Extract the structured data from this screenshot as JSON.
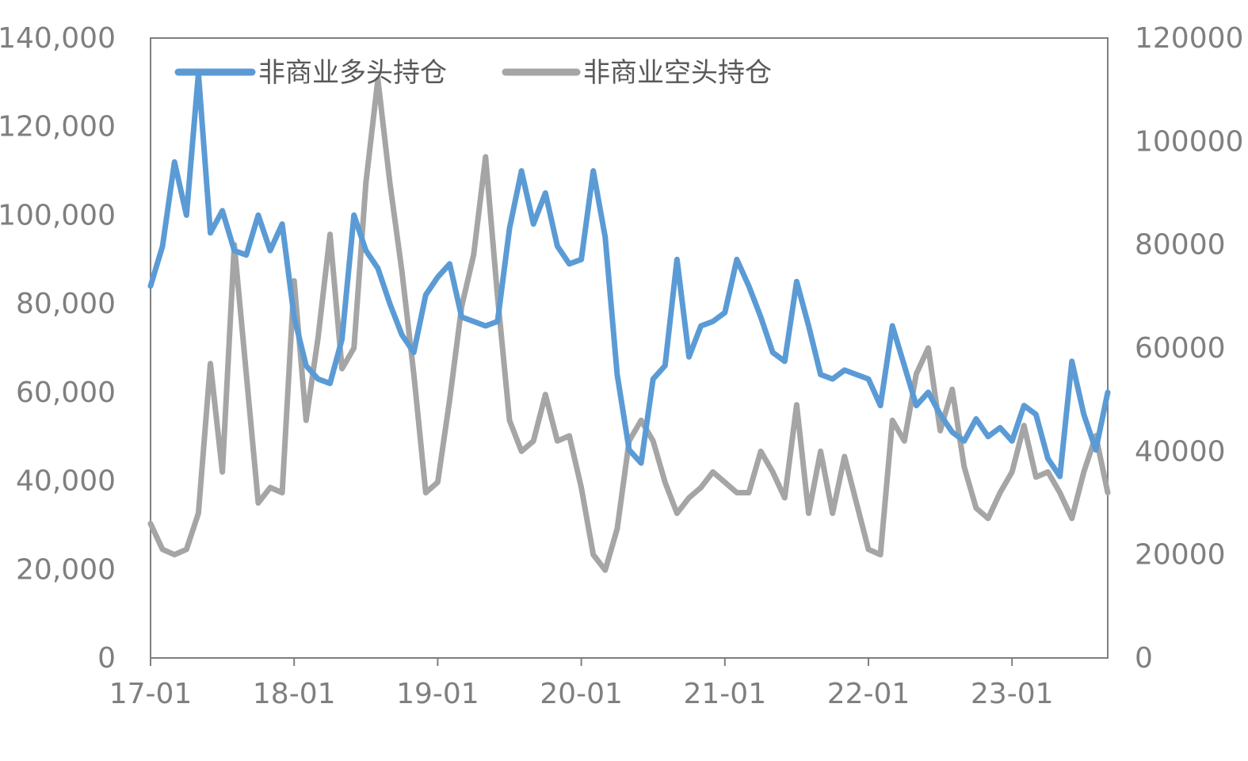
{
  "chart_data": {
    "type": "line",
    "title": "",
    "xlabel": "",
    "ylabel": "",
    "x_ticks": [
      "17-01",
      "18-01",
      "19-01",
      "20-01",
      "21-01",
      "22-01",
      "23-01"
    ],
    "x_range": [
      "2017-01",
      "2023-09"
    ],
    "y_left": {
      "ylim": [
        0,
        140000
      ],
      "ticks": [
        "0",
        "20,000",
        "40,000",
        "60,000",
        "80,000",
        "100,000",
        "120,000",
        "140,000"
      ]
    },
    "y_right": {
      "ylim": [
        0,
        120000
      ],
      "ticks": [
        "0",
        "20000",
        "40000",
        "60000",
        "80000",
        "100000",
        "120000"
      ]
    },
    "grid": false,
    "legend_position": "top-left inside",
    "series": [
      {
        "name": "非商业多头持仓",
        "axis": "left",
        "color": "#5b9bd5",
        "x": [
          "2017-01",
          "2017-02",
          "2017-03",
          "2017-04",
          "2017-05",
          "2017-06",
          "2017-07",
          "2017-08",
          "2017-09",
          "2017-10",
          "2017-11",
          "2017-12",
          "2018-01",
          "2018-02",
          "2018-03",
          "2018-04",
          "2018-05",
          "2018-06",
          "2018-07",
          "2018-08",
          "2018-09",
          "2018-10",
          "2018-11",
          "2018-12",
          "2019-01",
          "2019-02",
          "2019-03",
          "2019-04",
          "2019-05",
          "2019-06",
          "2019-07",
          "2019-08",
          "2019-09",
          "2019-10",
          "2019-11",
          "2019-12",
          "2020-01",
          "2020-02",
          "2020-03",
          "2020-04",
          "2020-05",
          "2020-06",
          "2020-07",
          "2020-08",
          "2020-09",
          "2020-10",
          "2020-11",
          "2020-12",
          "2021-01",
          "2021-02",
          "2021-03",
          "2021-04",
          "2021-05",
          "2021-06",
          "2021-07",
          "2021-08",
          "2021-09",
          "2021-10",
          "2021-11",
          "2021-12",
          "2022-01",
          "2022-02",
          "2022-03",
          "2022-04",
          "2022-05",
          "2022-06",
          "2022-07",
          "2022-08",
          "2022-09",
          "2022-10",
          "2022-11",
          "2022-12",
          "2023-01",
          "2023-02",
          "2023-03",
          "2023-04",
          "2023-05",
          "2023-06",
          "2023-07",
          "2023-08",
          "2023-09"
        ],
        "values": [
          84000,
          93000,
          112000,
          100000,
          132000,
          96000,
          101000,
          92000,
          91000,
          100000,
          92000,
          98000,
          77000,
          66000,
          63000,
          62000,
          72000,
          100000,
          92000,
          88000,
          80000,
          73000,
          69000,
          82000,
          86000,
          89000,
          77000,
          76000,
          75000,
          76000,
          97000,
          110000,
          98000,
          105000,
          93000,
          89000,
          90000,
          110000,
          95000,
          64000,
          47000,
          44000,
          63000,
          66000,
          90000,
          68000,
          75000,
          76000,
          78000,
          90000,
          84000,
          77000,
          69000,
          67000,
          85000,
          75000,
          64000,
          63000,
          65000,
          64000,
          63000,
          57000,
          75000,
          66000,
          57000,
          60000,
          55000,
          51000,
          49000,
          54000,
          50000,
          52000,
          49000,
          57000,
          55000,
          45000,
          41000,
          67000,
          55000,
          47000,
          60000
        ]
      },
      {
        "name": "非商业空头持仓",
        "axis": "right",
        "color": "#a5a5a5",
        "x": [
          "2017-01",
          "2017-02",
          "2017-03",
          "2017-04",
          "2017-05",
          "2017-06",
          "2017-07",
          "2017-08",
          "2017-09",
          "2017-10",
          "2017-11",
          "2017-12",
          "2018-01",
          "2018-02",
          "2018-03",
          "2018-04",
          "2018-05",
          "2018-06",
          "2018-07",
          "2018-08",
          "2018-09",
          "2018-10",
          "2018-11",
          "2018-12",
          "2019-01",
          "2019-02",
          "2019-03",
          "2019-04",
          "2019-05",
          "2019-06",
          "2019-07",
          "2019-08",
          "2019-09",
          "2019-10",
          "2019-11",
          "2019-12",
          "2020-01",
          "2020-02",
          "2020-03",
          "2020-04",
          "2020-05",
          "2020-06",
          "2020-07",
          "2020-08",
          "2020-09",
          "2020-10",
          "2020-11",
          "2020-12",
          "2021-01",
          "2021-02",
          "2021-03",
          "2021-04",
          "2021-05",
          "2021-06",
          "2021-07",
          "2021-08",
          "2021-09",
          "2021-10",
          "2021-11",
          "2021-12",
          "2022-01",
          "2022-02",
          "2022-03",
          "2022-04",
          "2022-05",
          "2022-06",
          "2022-07",
          "2022-08",
          "2022-09",
          "2022-10",
          "2022-11",
          "2022-12",
          "2023-01",
          "2023-02",
          "2023-03",
          "2023-04",
          "2023-05",
          "2023-06",
          "2023-07",
          "2023-08",
          "2023-09"
        ],
        "values": [
          26000,
          21000,
          20000,
          21000,
          28000,
          57000,
          36000,
          80000,
          55000,
          30000,
          33000,
          32000,
          73000,
          46000,
          62000,
          82000,
          56000,
          60000,
          92000,
          112000,
          92000,
          75000,
          55000,
          32000,
          34000,
          50000,
          68000,
          78000,
          97000,
          70000,
          46000,
          40000,
          42000,
          51000,
          42000,
          43000,
          33000,
          20000,
          17000,
          25000,
          42000,
          46000,
          42000,
          34000,
          28000,
          31000,
          33000,
          36000,
          34000,
          32000,
          32000,
          40000,
          36000,
          31000,
          49000,
          28000,
          40000,
          28000,
          39000,
          30000,
          21000,
          20000,
          46000,
          42000,
          55000,
          60000,
          44000,
          52000,
          37000,
          29000,
          27000,
          32000,
          36000,
          45000,
          35000,
          36000,
          32000,
          27000,
          36000,
          43000,
          32000
        ]
      }
    ]
  }
}
